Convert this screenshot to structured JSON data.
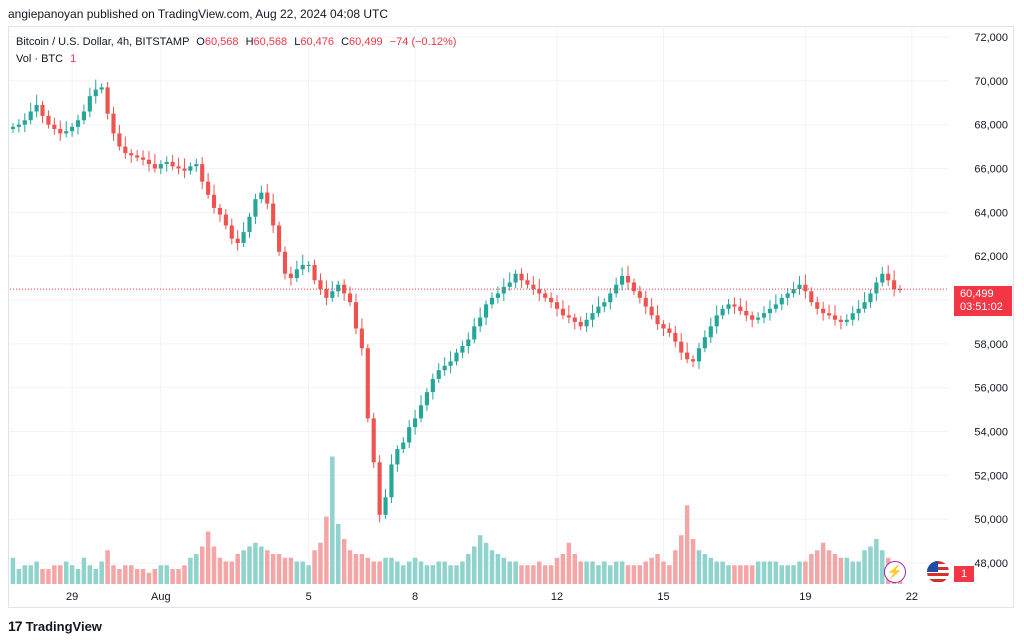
{
  "header": {
    "publisher_line": "angiepanoyan published on TradingView.com, Aug 22, 2024 04:08 UTC"
  },
  "legend": {
    "symbol": "Bitcoin / U.S. Dollar, 4h, BITSTAMP",
    "open_label": "O",
    "open": "60,568",
    "high_label": "H",
    "high": "60,568",
    "low_label": "L",
    "low": "60,476",
    "close_label": "C",
    "close": "60,499",
    "change": "−74 (−0.12%)",
    "volume_label": "Vol · BTC",
    "volume_value": "1"
  },
  "price_tag": {
    "price": "60,499",
    "countdown": "03:51:02"
  },
  "volume_tag": {
    "value": "1"
  },
  "footer": {
    "brand": "TradingView",
    "logo_icon": "tradingview-logo-icon"
  },
  "colors": {
    "up": "#26a69a",
    "down": "#ef5350",
    "up_vol": "#8fd3cc",
    "down_vol": "#f4a6a6",
    "last_price_line": "#f23645"
  },
  "chart_data": {
    "type": "candlestick",
    "ylim": [
      47000,
      72500
    ],
    "y_ticks": [
      72000,
      70000,
      68000,
      66000,
      64000,
      62000,
      60000,
      58000,
      56000,
      54000,
      52000,
      50000,
      48000
    ],
    "y_tick_labels": [
      "72,000",
      "70,000",
      "68,000",
      "66,000",
      "64,000",
      "62,000",
      "60,000",
      "58,000",
      "56,000",
      "54,000",
      "52,000",
      "50,000",
      "48,000"
    ],
    "x_ticks": [
      {
        "label": "29",
        "index": 10
      },
      {
        "label": "Aug",
        "index": 25
      },
      {
        "label": "5",
        "index": 50
      },
      {
        "label": "8",
        "index": 68
      },
      {
        "label": "12",
        "index": 92
      },
      {
        "label": "15",
        "index": 110
      },
      {
        "label": "19",
        "index": 134
      },
      {
        "label": "22",
        "index": 152
      }
    ],
    "last_price": 60499,
    "close": [
      67900,
      68000,
      68200,
      68600,
      68900,
      68400,
      68000,
      67800,
      67600,
      67700,
      67900,
      68200,
      68600,
      69300,
      69600,
      69700,
      68500,
      67600,
      67000,
      66700,
      66600,
      66500,
      66400,
      66200,
      66000,
      66200,
      66300,
      66100,
      66000,
      65900,
      66100,
      66200,
      65400,
      64800,
      64200,
      63900,
      63400,
      62800,
      62600,
      63100,
      63800,
      64600,
      64900,
      64400,
      63400,
      62200,
      61200,
      61000,
      61400,
      61600,
      61600,
      60900,
      60500,
      60100,
      60400,
      60700,
      60300,
      59900,
      58700,
      57800,
      54600,
      52600,
      50200,
      51000,
      52500,
      53200,
      53500,
      54200,
      54600,
      55200,
      55800,
      56400,
      56800,
      57000,
      57200,
      57600,
      57900,
      58200,
      58800,
      59200,
      59800,
      60100,
      60300,
      60600,
      60800,
      61200,
      60900,
      60700,
      60500,
      60300,
      60100,
      59900,
      59600,
      59300,
      59200,
      59000,
      58800,
      59100,
      59400,
      59700,
      59900,
      60300,
      60700,
      61100,
      60800,
      60400,
      60100,
      59700,
      59300,
      58900,
      58700,
      58500,
      58100,
      57600,
      57300,
      57200,
      57800,
      58300,
      58800,
      59300,
      59600,
      59800,
      59700,
      59500,
      59300,
      59100,
      59200,
      59400,
      59600,
      59800,
      60100,
      60300,
      60500,
      60700,
      60400,
      59900,
      59600,
      59400,
      59300,
      59100,
      59000,
      59100,
      59400,
      59600,
      59900,
      60300,
      60800,
      61200,
      60900,
      60500,
      60499
    ],
    "volume": [
      7,
      4,
      5,
      5,
      6,
      4,
      4,
      5,
      5,
      6,
      5,
      4,
      7,
      5,
      4,
      6,
      9,
      5,
      4,
      5,
      5,
      4,
      4,
      3,
      4,
      5,
      5,
      4,
      4,
      5,
      7,
      8,
      10,
      14,
      10,
      7,
      6,
      6,
      8,
      9,
      10,
      11,
      10,
      9,
      8,
      8,
      7,
      7,
      6,
      6,
      5,
      9,
      11,
      18,
      34,
      16,
      12,
      9,
      8,
      8,
      7,
      6,
      6,
      7,
      7,
      6,
      5,
      6,
      7,
      6,
      5,
      5,
      6,
      6,
      5,
      5,
      6,
      8,
      10,
      13,
      11,
      9,
      8,
      7,
      6,
      6,
      5,
      5,
      5,
      6,
      5,
      5,
      7,
      8,
      11,
      8,
      6,
      6,
      6,
      5,
      6,
      5,
      6,
      6,
      5,
      5,
      5,
      6,
      7,
      8,
      6,
      5,
      9,
      13,
      21,
      12,
      9,
      8,
      7,
      6,
      6,
      5,
      5,
      5,
      5,
      5,
      6,
      6,
      6,
      6,
      5,
      5,
      5,
      6,
      6,
      8,
      9,
      11,
      9,
      8,
      7,
      7,
      6,
      6,
      9,
      10,
      12,
      9,
      7,
      5,
      1
    ],
    "volume_ylim": [
      0,
      40
    ]
  }
}
